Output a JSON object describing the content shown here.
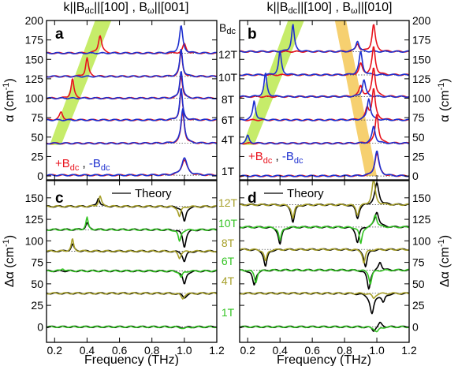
{
  "headers": {
    "left": "k||B_dc||[100] , B_ω||[001]",
    "right": "k||B_dc||[100] , B_ω||[010]"
  },
  "field_header": "B_dc",
  "field_labels_top": [
    "12T",
    "10T",
    "8T",
    "6T",
    "4T",
    "1T"
  ],
  "field_labels_bottom": [
    "12T",
    "10T",
    "8T",
    "6T",
    "4T",
    "1T"
  ],
  "legend": {
    "plus": "+B_dc",
    "comma": ",",
    "minus": "-B_dc",
    "theory": "Theory"
  },
  "panel_letters": [
    "a",
    "b",
    "c",
    "d"
  ],
  "axis_labels": {
    "top_y": "α (cm^-1)",
    "bottom_y": "Δα (cm^-1)",
    "x": "Frequency (THz)"
  },
  "colors": {
    "plus": "#e8121c",
    "minus": "#1d2fcf",
    "theory": "#000000",
    "olive": "#a7a02a",
    "green": "#35c425",
    "band_green": "#c6ec6a",
    "band_orange": "#f6d070"
  },
  "chart_data": [
    {
      "panel": "a",
      "type": "line",
      "xlabel": "Frequency (THz)",
      "ylabel": "α (cm^-1)",
      "xlim": [
        0.15,
        1.2
      ],
      "ylim": [
        -5,
        200
      ],
      "xticks": [
        0.2,
        0.4,
        0.6,
        0.8,
        1.0,
        1.2
      ],
      "yticks": [
        0,
        25,
        50,
        75,
        100,
        125,
        150,
        175,
        200
      ],
      "series": [
        {
          "name": "+B_dc",
          "field": "12T",
          "offset": 158,
          "peaks": [
            [
              1.0,
              12,
              0.012
            ],
            [
              0.48,
              23,
              0.012
            ]
          ]
        },
        {
          "name": "-B_dc",
          "field": "12T",
          "offset": 158,
          "peaks": [
            [
              0.98,
              35,
              0.012
            ]
          ]
        },
        {
          "name": "+B_dc",
          "field": "10T",
          "offset": 128,
          "peaks": [
            [
              0.98,
              32,
              0.01
            ],
            [
              0.4,
              24,
              0.01
            ]
          ]
        },
        {
          "name": "-B_dc",
          "field": "10T",
          "offset": 128,
          "peaks": [
            [
              0.98,
              36,
              0.01
            ]
          ]
        },
        {
          "name": "+B_dc",
          "field": "8T",
          "offset": 100,
          "peaks": [
            [
              0.98,
              30,
              0.01
            ],
            [
              0.31,
              25,
              0.01
            ]
          ]
        },
        {
          "name": "-B_dc",
          "field": "8T",
          "offset": 100,
          "peaks": [
            [
              0.98,
              36,
              0.01
            ]
          ]
        },
        {
          "name": "+B_dc",
          "field": "6T",
          "offset": 72,
          "peaks": [
            [
              0.98,
              38,
              0.01
            ],
            [
              0.24,
              10,
              0.012
            ]
          ]
        },
        {
          "name": "-B_dc",
          "field": "6T",
          "offset": 72,
          "peaks": [
            [
              0.98,
              41,
              0.01
            ]
          ]
        },
        {
          "name": "+B_dc",
          "field": "4T",
          "offset": 42,
          "peaks": [
            [
              0.99,
              40,
              0.012
            ]
          ]
        },
        {
          "name": "-B_dc",
          "field": "4T",
          "offset": 42,
          "peaks": [
            [
              0.99,
              45,
              0.012
            ]
          ]
        },
        {
          "name": "+B_dc",
          "field": "1T",
          "offset": 1,
          "peaks": [
            [
              1.0,
              20,
              0.02
            ]
          ]
        },
        {
          "name": "-B_dc",
          "field": "1T",
          "offset": 1,
          "peaks": [
            [
              1.0,
              22,
              0.02
            ]
          ]
        }
      ],
      "bands": [
        {
          "color": "band_green",
          "x_bottom": [
            0.17,
            0.24
          ],
          "x_top": [
            0.45,
            0.55
          ],
          "y": [
            40,
            200
          ]
        }
      ]
    },
    {
      "panel": "b",
      "type": "line",
      "xlabel": "Frequency (THz)",
      "ylabel": "α (cm^-1)",
      "xlim": [
        0.15,
        1.2
      ],
      "ylim": [
        -5,
        200
      ],
      "xticks": [
        0.2,
        0.4,
        0.6,
        0.8,
        1.0,
        1.2
      ],
      "yticks": [
        0,
        25,
        50,
        75,
        100,
        125,
        150,
        175,
        200
      ],
      "series": [
        {
          "name": "+B_dc",
          "field": "12T",
          "offset": 160,
          "peaks": [
            [
              0.98,
              35,
              0.012
            ],
            [
              0.88,
              10,
              0.012
            ]
          ]
        },
        {
          "name": "-B_dc",
          "field": "12T",
          "offset": 160,
          "peaks": [
            [
              0.48,
              35,
              0.01
            ],
            [
              0.88,
              14,
              0.012
            ]
          ]
        },
        {
          "name": "+B_dc",
          "field": "10T",
          "offset": 130,
          "peaks": [
            [
              0.98,
              36,
              0.012
            ],
            [
              0.9,
              14,
              0.012
            ]
          ]
        },
        {
          "name": "-B_dc",
          "field": "10T",
          "offset": 130,
          "peaks": [
            [
              0.4,
              30,
              0.01
            ],
            [
              0.9,
              30,
              0.012
            ]
          ]
        },
        {
          "name": "+B_dc",
          "field": "8T",
          "offset": 102,
          "peaks": [
            [
              0.98,
              38,
              0.012
            ],
            [
              0.9,
              14,
              0.012
            ]
          ]
        },
        {
          "name": "-B_dc",
          "field": "8T",
          "offset": 102,
          "peaks": [
            [
              0.31,
              30,
              0.01
            ],
            [
              0.92,
              22,
              0.012
            ]
          ]
        },
        {
          "name": "+B_dc",
          "field": "6T",
          "offset": 72,
          "peaks": [
            [
              0.98,
              40,
              0.012
            ],
            [
              0.94,
              14,
              0.012
            ]
          ]
        },
        {
          "name": "-B_dc",
          "field": "6T",
          "offset": 72,
          "peaks": [
            [
              0.24,
              25,
              0.01
            ],
            [
              0.95,
              28,
              0.012
            ]
          ]
        },
        {
          "name": "+B_dc",
          "field": "4T",
          "offset": 42,
          "peaks": [
            [
              1.0,
              38,
              0.012
            ]
          ]
        },
        {
          "name": "-B_dc",
          "field": "4T",
          "offset": 42,
          "peaks": [
            [
              0.98,
              22,
              0.012
            ],
            [
              0.2,
              10,
              0.01
            ]
          ]
        },
        {
          "name": "+B_dc",
          "field": "1T",
          "offset": 0,
          "peaks": [
            [
              1.0,
              30,
              0.015
            ]
          ]
        },
        {
          "name": "-B_dc",
          "field": "1T",
          "offset": 0,
          "peaks": [
            [
              1.0,
              32,
              0.015
            ]
          ]
        }
      ],
      "bands": [
        {
          "color": "band_green",
          "x_bottom": [
            0.17,
            0.24
          ],
          "x_top": [
            0.45,
            0.55
          ],
          "y": [
            40,
            200
          ]
        },
        {
          "color": "band_orange",
          "x_bottom": [
            0.93,
            1.0
          ],
          "x_top": [
            0.74,
            0.81
          ],
          "y": [
            0,
            200
          ]
        }
      ]
    },
    {
      "panel": "c",
      "type": "line",
      "xlabel": "Frequency (THz)",
      "ylabel": "Δα (cm^-1)",
      "xlim": [
        0.15,
        1.2
      ],
      "ylim": [
        -18,
        170
      ],
      "xticks": [
        0.2,
        0.4,
        0.6,
        0.8,
        1.0,
        1.2
      ],
      "yticks": [
        0,
        25,
        50,
        75,
        100,
        125,
        150
      ],
      "series": [
        {
          "name": "Theory",
          "field": "12T",
          "offset": 140,
          "peaks": [
            [
              0.47,
              10,
              0.01
            ],
            [
              1.0,
              -18,
              0.012
            ]
          ]
        },
        {
          "name": "12T",
          "field": "12T",
          "offset": 140,
          "peaks": [
            [
              0.48,
              12,
              0.01
            ],
            [
              0.97,
              -12,
              0.01
            ]
          ]
        },
        {
          "name": "Theory",
          "field": "10T",
          "offset": 113,
          "peaks": [
            [
              0.4,
              8,
              0.01
            ],
            [
              1.0,
              -20,
              0.012
            ]
          ]
        },
        {
          "name": "10T",
          "field": "10T",
          "offset": 113,
          "peaks": [
            [
              0.4,
              14,
              0.008
            ],
            [
              0.97,
              -14,
              0.01
            ]
          ]
        },
        {
          "name": "Theory",
          "field": "8T",
          "offset": 88,
          "peaks": [
            [
              0.31,
              8,
              0.01
            ],
            [
              1.0,
              -12,
              0.012
            ]
          ]
        },
        {
          "name": "8T",
          "field": "8T",
          "offset": 88,
          "peaks": [
            [
              0.31,
              14,
              0.008
            ],
            [
              0.97,
              -8,
              0.01
            ]
          ]
        },
        {
          "name": "Theory",
          "field": "6T",
          "offset": 65,
          "peaks": [
            [
              1.0,
              -16,
              0.012
            ]
          ]
        },
        {
          "name": "6T",
          "field": "6T",
          "offset": 65,
          "peaks": [
            [
              0.25,
              3,
              0.01
            ],
            [
              0.98,
              -8,
              0.01
            ]
          ]
        },
        {
          "name": "Theory",
          "field": "4T",
          "offset": 39,
          "peaks": [
            [
              1.0,
              -5,
              0.015
            ]
          ]
        },
        {
          "name": "4T",
          "field": "4T",
          "offset": 39,
          "peaks": [
            [
              0.99,
              -6,
              0.012
            ]
          ]
        },
        {
          "name": "Theory",
          "field": "1T",
          "offset": 0,
          "peaks": [
            [
              1.0,
              -1,
              0.02
            ]
          ]
        },
        {
          "name": "1T",
          "field": "1T",
          "offset": 0,
          "peaks": [
            [
              1.0,
              -2,
              0.02
            ]
          ]
        }
      ]
    },
    {
      "panel": "d",
      "type": "line",
      "xlabel": "Frequency (THz)",
      "ylabel": "Δα (cm^-1)",
      "xlim": [
        0.15,
        1.2
      ],
      "ylim": [
        -18,
        170
      ],
      "xticks": [
        0.2,
        0.4,
        0.6,
        0.8,
        1.0,
        1.2
      ],
      "yticks": [
        0,
        25,
        50,
        75,
        100,
        125,
        150
      ],
      "series": [
        {
          "name": "Theory",
          "field": "12T",
          "offset": 142,
          "peaks": [
            [
              0.48,
              -20,
              0.012
            ],
            [
              0.88,
              -16,
              0.012
            ],
            [
              1.0,
              25,
              0.015
            ]
          ]
        },
        {
          "name": "12T",
          "field": "12T",
          "offset": 142,
          "peaks": [
            [
              0.48,
              -16,
              0.01
            ],
            [
              0.88,
              -12,
              0.01
            ],
            [
              0.98,
              30,
              0.012
            ]
          ]
        },
        {
          "name": "Theory",
          "field": "10T",
          "offset": 116,
          "peaks": [
            [
              0.4,
              -20,
              0.012
            ],
            [
              0.88,
              -18,
              0.012
            ],
            [
              1.0,
              18,
              0.015
            ]
          ]
        },
        {
          "name": "10T",
          "field": "10T",
          "offset": 116,
          "peaks": [
            [
              0.4,
              -16,
              0.01
            ],
            [
              0.9,
              -20,
              0.01
            ],
            [
              0.99,
              15,
              0.012
            ]
          ]
        },
        {
          "name": "Theory",
          "field": "8T",
          "offset": 90,
          "peaks": [
            [
              0.31,
              -20,
              0.012
            ],
            [
              0.93,
              -20,
              0.012
            ]
          ]
        },
        {
          "name": "8T",
          "field": "8T",
          "offset": 90,
          "peaks": [
            [
              0.31,
              -14,
              0.01
            ],
            [
              0.92,
              -16,
              0.01
            ]
          ]
        },
        {
          "name": "Theory",
          "field": "6T",
          "offset": 66,
          "peaks": [
            [
              0.24,
              -18,
              0.012
            ],
            [
              0.95,
              -22,
              0.012
            ],
            [
              1.02,
              10,
              0.012
            ]
          ]
        },
        {
          "name": "6T",
          "field": "6T",
          "offset": 66,
          "peaks": [
            [
              0.25,
              -14,
              0.01
            ],
            [
              0.96,
              -16,
              0.01
            ]
          ]
        },
        {
          "name": "Theory",
          "field": "4T",
          "offset": 39,
          "peaks": [
            [
              0.97,
              -24,
              0.015
            ],
            [
              1.04,
              -10,
              0.012
            ]
          ]
        },
        {
          "name": "4T",
          "field": "4T",
          "offset": 39,
          "peaks": [
            [
              0.98,
              -6,
              0.012
            ]
          ]
        },
        {
          "name": "Theory",
          "field": "1T",
          "offset": 0,
          "peaks": [
            [
              0.98,
              -5,
              0.012
            ],
            [
              1.02,
              5,
              0.012
            ]
          ]
        },
        {
          "name": "1T",
          "field": "1T",
          "offset": 0,
          "peaks": [
            [
              1.0,
              -6,
              0.015
            ]
          ]
        }
      ]
    }
  ]
}
